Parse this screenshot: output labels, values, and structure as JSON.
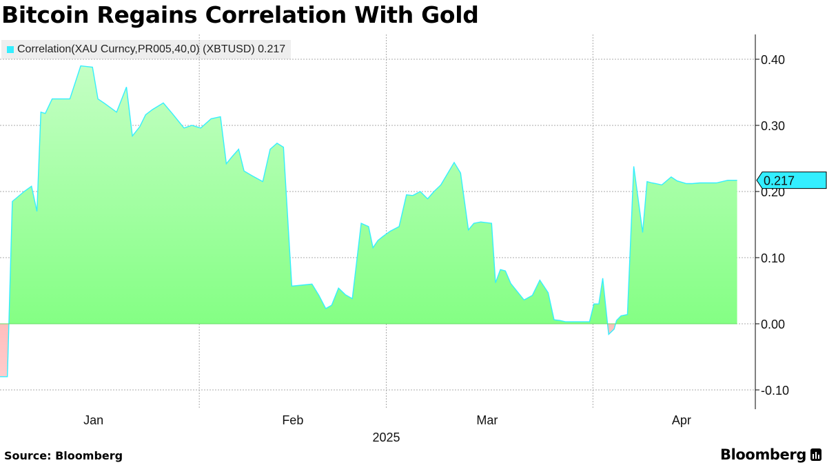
{
  "header": {
    "title": "Bitcoin Regains Correlation With Gold"
  },
  "legend": {
    "label": "Correlation(XAU Curncy,PR005,40,0) (XBTUSD) 0.217",
    "swatch_color": "#33eeff"
  },
  "footer": {
    "source": "Source: Bloomberg",
    "brand": "Bloomberg"
  },
  "colors": {
    "positive_fill_top": "#bbffbb",
    "positive_fill_bottom": "#77ff77",
    "negative_fill": "#ff8888",
    "line": "#33eeff",
    "grid": "#aaaaaa"
  },
  "chart_data": {
    "type": "area",
    "title": "Bitcoin Regains Correlation With Gold",
    "series_name": "Correlation(XAU Curncy,PR005,40,0) (XBTUSD)",
    "last_value": 0.217,
    "last_value_label": "0.217",
    "ylim": [
      -0.13,
      0.43
    ],
    "yticks": [
      -0.1,
      0.0,
      0.1,
      0.2,
      0.3,
      0.4
    ],
    "ytick_labels": [
      "-0.10",
      "0.00",
      "0.10",
      "0.20",
      "0.30",
      "0.40"
    ],
    "x_range": [
      0,
      150
    ],
    "month_labels": [
      {
        "label": "Jan",
        "x": 19
      },
      {
        "label": "Feb",
        "x": 59.5
      },
      {
        "label": "Mar",
        "x": 99
      },
      {
        "label": "Apr",
        "x": 138.5
      }
    ],
    "month_gridlines": [
      0,
      40.5,
      78.5,
      120.5
    ],
    "year_label": "2025",
    "year_x": 78.5,
    "x": [
      0,
      1.5,
      2.5,
      4.9,
      6.4,
      7.5,
      8.3,
      9.2,
      10.6,
      12.2,
      14.2,
      16.4,
      18.8,
      19.9,
      21.3,
      23.7,
      25.7,
      26.9,
      28.4,
      29.6,
      31.0,
      33.2,
      35.0,
      37.4,
      39.0,
      40.8,
      42.9,
      44.8,
      46.0,
      47.2,
      48.5,
      49.6,
      51.2,
      53.4,
      54.9,
      56.3,
      57.6,
      59.3,
      63.4,
      64.8,
      66.2,
      67.4,
      68.8,
      70.2,
      71.6,
      73.4,
      74.9,
      75.8,
      76.8,
      77.8,
      79.3,
      81.1,
      82.6,
      83.9,
      85.4,
      86.9,
      88.2,
      89.6,
      92.3,
      93.6,
      95.2,
      96.3,
      97.7,
      99.9,
      100.7,
      101.7,
      102.7,
      103.8,
      106.5,
      108.2,
      109.7,
      111.4,
      112.6,
      113.8,
      114.9,
      116.6,
      119.8,
      120.7,
      121.7,
      122.5,
      123.7,
      124.8,
      125.3,
      126.2,
      127.5,
      128.8,
      130.6,
      131.5,
      132.5,
      133.3,
      134.5,
      136.4,
      137.6,
      139.5,
      140.7,
      142.2,
      143.6,
      145.6,
      147.9,
      148.9,
      149.8
    ],
    "values": [
      -0.08,
      -0.08,
      0.185,
      0.2,
      0.208,
      0.17,
      0.32,
      0.318,
      0.34,
      0.34,
      0.34,
      0.39,
      0.388,
      0.34,
      0.333,
      0.32,
      0.358,
      0.284,
      0.298,
      0.316,
      0.324,
      0.334,
      0.318,
      0.296,
      0.3,
      0.296,
      0.31,
      0.313,
      0.242,
      0.253,
      0.264,
      0.231,
      0.224,
      0.215,
      0.264,
      0.273,
      0.267,
      0.057,
      0.06,
      0.043,
      0.023,
      0.028,
      0.054,
      0.044,
      0.038,
      0.152,
      0.147,
      0.115,
      0.126,
      0.132,
      0.14,
      0.147,
      0.195,
      0.194,
      0.2,
      0.189,
      0.2,
      0.21,
      0.244,
      0.228,
      0.142,
      0.152,
      0.154,
      0.152,
      0.062,
      0.082,
      0.08,
      0.061,
      0.036,
      0.043,
      0.066,
      0.047,
      0.006,
      0.005,
      0.003,
      0.003,
      0.003,
      0.03,
      0.03,
      0.069,
      -0.016,
      -0.008,
      0.005,
      0.012,
      0.014,
      0.238,
      0.138,
      0.215,
      0.213,
      0.212,
      0.21,
      0.222,
      0.216,
      0.212,
      0.212,
      0.213,
      0.213,
      0.213,
      0.217,
      0.217,
      0.217
    ]
  }
}
